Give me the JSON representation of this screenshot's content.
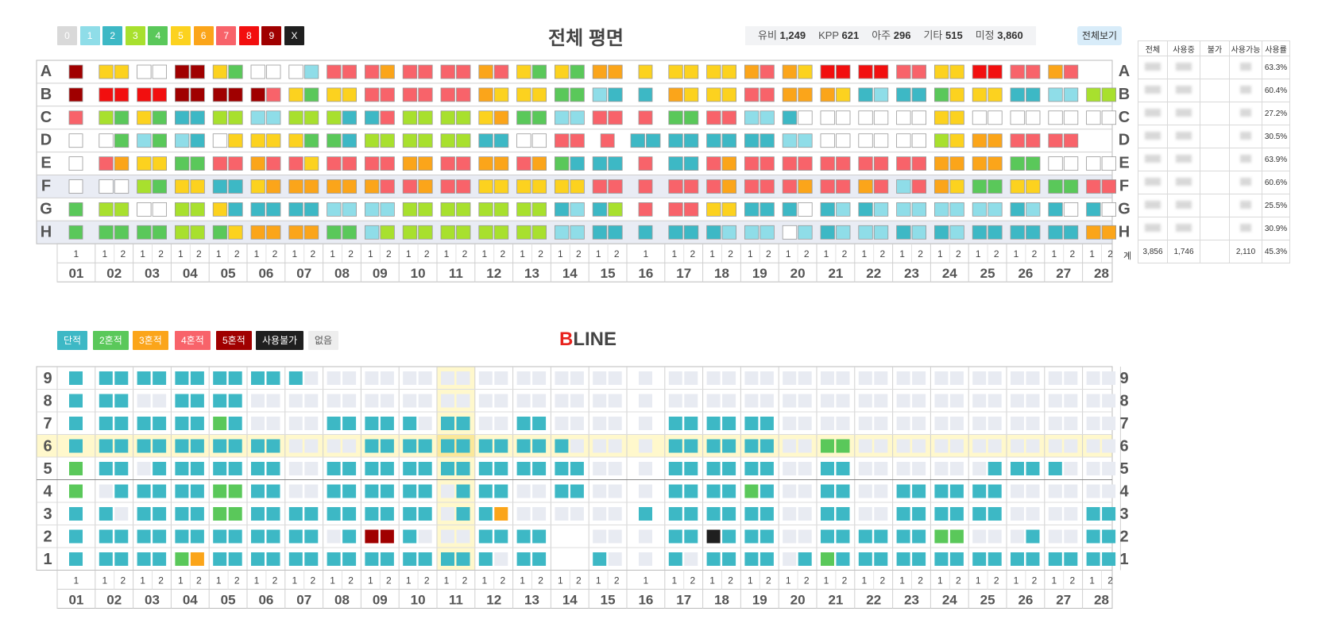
{
  "color_legend": {
    "chips": [
      {
        "label": "0",
        "color": "#d9d9d9"
      },
      {
        "label": "1",
        "color": "#8fdde8"
      },
      {
        "label": "2",
        "color": "#3db8c5"
      },
      {
        "label": "3",
        "color": "#a8e02e"
      },
      {
        "label": "4",
        "color": "#5ac85a"
      },
      {
        "label": "5",
        "color": "#fcd21f"
      },
      {
        "label": "6",
        "color": "#fba51a"
      },
      {
        "label": "7",
        "color": "#f8636a"
      },
      {
        "label": "8",
        "color": "#f20f0f"
      },
      {
        "label": "9",
        "color": "#a00000"
      },
      {
        "label": "X",
        "color": "#1f1f1f"
      }
    ]
  },
  "top_title": "전체 평면",
  "stats": [
    {
      "label": "유비",
      "value": "1,249"
    },
    {
      "label": "KPP",
      "value": "621"
    },
    {
      "label": "아주",
      "value": "296"
    },
    {
      "label": "기타",
      "value": "515"
    },
    {
      "label": "미정",
      "value": "3,860"
    }
  ],
  "view_all_label": "전체보기",
  "rows_top": [
    "A",
    "B",
    "C",
    "D",
    "E",
    "F",
    "G",
    "H"
  ],
  "columns": [
    "01",
    "02",
    "03",
    "04",
    "05",
    "06",
    "07",
    "08",
    "09",
    "10",
    "11",
    "12",
    "13",
    "14",
    "15",
    "16",
    "17",
    "18",
    "19",
    "20",
    "21",
    "22",
    "23",
    "24",
    "25",
    "26",
    "27",
    "28"
  ],
  "top_grid": {
    "A": "9 55 00 99 54 00 01 77 76 77 77 67 54 54 66 5 55 55 67 65 88 88 77 55 88 77 67",
    "B": "9 88 88 99 99 97 54 55 77 77 77 65 55 44 12 2 65 55 77 66 65 21 22 45 55 22 11 33",
    "C": "7 34 54 22 33 11 33 32 27 33 33 56 44 11 77 7 44 77 11 20 00 00 00 55 00 00 00 00",
    "D": "0 04 14 12 05 55 54 42 33 33 33 22 00 77 7 22 22 22 22 11 00 00 00 35 66 77 77",
    "E": "0 76 55 44 77 67 75 77 77 66 77 66 76 42 22 7 22 76 77 77 77 77 77 66 66 44 00 00",
    "F": "0 00 34 55 22 56 66 66 67 76 77 55 55 55 77 7 77 76 77 76 77 67 17 65 44 55 44 77",
    "G": "4 33 00 33 52 22 22 11 11 33 33 33 33 21 23 7 77 55 22 20 21 21 11 11 11 21 20 20",
    "H": "4 44 44 33 45 66 66 44 13 33 33 33 33 11 22 2 22 21 11 01 21 11 21 21 22 22 22 66"
  },
  "side_table": {
    "headers": [
      "전체",
      "사용중",
      "불가",
      "사용가능",
      "사용률"
    ],
    "rates": [
      "63.3%",
      "60.4%",
      "27.2%",
      "30.5%",
      "63.9%",
      "60.6%",
      "25.5%",
      "30.9%"
    ],
    "total_label": "계",
    "totals": [
      "3,856",
      "1,746",
      "",
      "2,110",
      "45.3%"
    ]
  },
  "bline_legend": [
    {
      "label": "단적",
      "color": "#3db8c5"
    },
    {
      "label": "2혼적",
      "color": "#5ac85a"
    },
    {
      "label": "3혼적",
      "color": "#fba51a"
    },
    {
      "label": "4혼적",
      "color": "#f8636a"
    },
    {
      "label": "5혼적",
      "color": "#a00000"
    },
    {
      "label": "사용불가",
      "color": "#1f1f1f"
    },
    {
      "label": "없음",
      "color": "#eeeeee"
    }
  ],
  "bline_title": {
    "accent": "B",
    "rest": "LINE"
  },
  "rows_bottom": [
    "9",
    "8",
    "7",
    "6",
    "5",
    "4",
    "3",
    "2",
    "1"
  ],
  "bline_grid": {
    "9": "2 22 22 22 22 22 2e ee ee ee ee ee ee ee ee e ee ee ee ee ee ee ee ee ee ee ee ee",
    "8": "2 22 ee 22 22 ee ee ee ee ee ee ee ee ee ee e ee ee ee ee ee ee ee ee ee ee ee ee",
    "7": "2 22 22 22 42 ee ee 22 22 2e 22 ee 22 ee ee e 22 22 22 ee ee ee ee ee ee ee ee ee",
    "6": "2 22 22 22 22 22 ee ee 22 22 22 22 22 2e ee e 22 22 22 ee 44 ee ee ee ee ee ee ee",
    "5": "4 22 e2 22 22 22 ee 22 22 22 22 22 22 22 ee e 22 22 22 ee 22 ee ee ee e2 22 2e ee",
    "4": "4 e2 22 22 44 22 ee 22 22 22 e2 22 ee 22 ee e 22 22 42 ee 22 ee 22 22 22 ee ee ee",
    "3": "2 2e 22 22 44 22 22 22 22 22 e2 26 ee ee ee 2 22 22 22 ee 22 ee 22 22 22 ee ee 22",
    "2": "2 22 22 22 22 22 22 e2 99 2e ee 22 22 ww ee e 22 x2 22 ee 22 22 22 44 ee e2 ee 22",
    "1": "2 22 22 46 22 22 22 22 22 22 22 2e 22 ww 2e e 2e 22 22 e2 42 22 22 22 22 22 22 22"
  }
}
